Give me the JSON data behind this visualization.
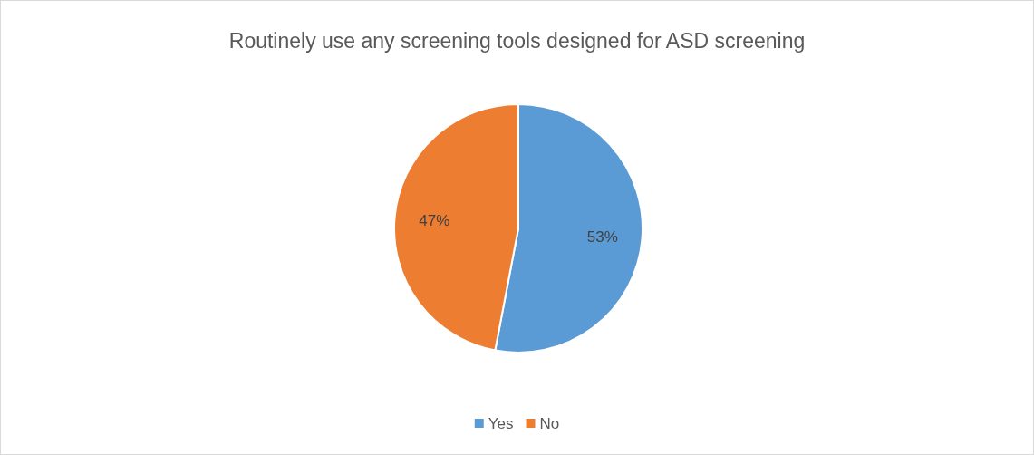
{
  "chart_data": {
    "type": "pie",
    "title": "Routinely use any screening tools designed for ASD screening",
    "categories": [
      "Yes",
      "No"
    ],
    "values": [
      53,
      47
    ],
    "value_labels": [
      "53%",
      "47%"
    ],
    "colors": [
      "#5b9bd5",
      "#ed7d31"
    ],
    "legend": "bottom"
  }
}
